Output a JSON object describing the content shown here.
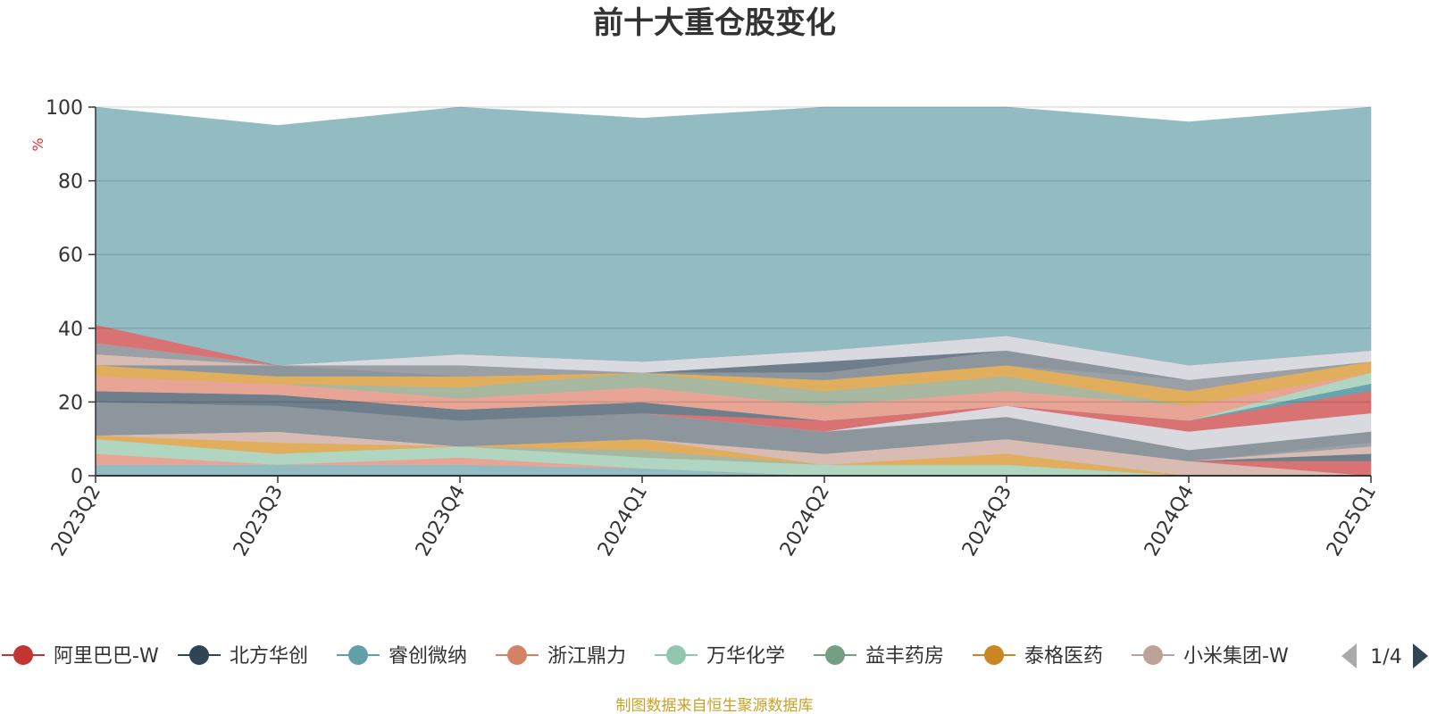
{
  "chart_data": {
    "type": "area",
    "stacked": true,
    "title": "前十大重仓股变化",
    "ylabel": "%",
    "ylim": [
      0,
      100
    ],
    "yticks": [
      0,
      20,
      40,
      60,
      80,
      100
    ],
    "grid": true,
    "legend_position": "bottom",
    "categories": [
      "2023Q2",
      "2023Q3",
      "2023Q4",
      "2024Q1",
      "2024Q2",
      "2024Q3",
      "2024Q4",
      "2025Q1"
    ],
    "series": [
      {
        "name": "",
        "color": "#93bbc2",
        "values": [
          3,
          3,
          3,
          2,
          0,
          0,
          0,
          0
        ]
      },
      {
        "name": "",
        "color": "#e8a596",
        "values": [
          3,
          0,
          2,
          0,
          0,
          0,
          0,
          0
        ]
      },
      {
        "name": "",
        "color": "#b0d6c2",
        "values": [
          4,
          3,
          3,
          3,
          3,
          3,
          0,
          0
        ]
      },
      {
        "name": "",
        "color": "#a8b8a0",
        "values": [
          0,
          0,
          0,
          2,
          0,
          0,
          0,
          0
        ]
      },
      {
        "name": "",
        "color": "#e0ae5c",
        "values": [
          1,
          3,
          0,
          3,
          0,
          3,
          0,
          0
        ]
      },
      {
        "name": "",
        "color": "#d8bcb4",
        "values": [
          0,
          3,
          0,
          0,
          3,
          4,
          4,
          0
        ]
      },
      {
        "name": "",
        "color": "#d97272",
        "values": [
          0,
          0,
          0,
          0,
          0,
          0,
          0,
          4
        ]
      },
      {
        "name": "",
        "color": "#6e7e8a",
        "values": [
          0,
          0,
          0,
          0,
          0,
          0,
          0,
          2
        ]
      },
      {
        "name": "",
        "color": "#d8bcb4",
        "values": [
          0,
          0,
          0,
          0,
          0,
          0,
          0,
          2
        ]
      },
      {
        "name": "",
        "color": "#9aa0a6",
        "values": [
          0,
          0,
          0,
          0,
          0,
          0,
          0,
          1
        ]
      },
      {
        "name": "",
        "color": "#8c969c",
        "values": [
          9,
          7,
          7,
          7,
          6,
          6,
          3,
          3
        ]
      },
      {
        "name": "",
        "color": "#d8dadf",
        "values": [
          0,
          0,
          0,
          0,
          0,
          3,
          5,
          5
        ]
      },
      {
        "name": "",
        "color": "#d97272",
        "values": [
          0,
          0,
          0,
          0,
          3,
          0,
          3,
          6
        ]
      },
      {
        "name": "",
        "color": "#6aa3b0",
        "values": [
          0,
          0,
          0,
          0,
          0,
          0,
          0,
          2
        ]
      },
      {
        "name": "",
        "color": "#6e7e8a",
        "values": [
          3,
          3,
          3,
          3,
          0,
          0,
          0,
          0
        ]
      },
      {
        "name": "",
        "color": "#b0d6c2",
        "values": [
          0,
          0,
          0,
          0,
          0,
          0,
          0,
          3
        ]
      },
      {
        "name": "",
        "color": "#e8a596",
        "values": [
          4,
          3,
          3,
          4,
          4,
          4,
          4,
          0
        ]
      },
      {
        "name": "",
        "color": "#a8b8a0",
        "values": [
          0,
          0,
          3,
          4,
          4,
          4,
          0,
          0
        ]
      },
      {
        "name": "",
        "color": "#e0ae5c",
        "values": [
          3,
          2,
          3,
          0,
          3,
          3,
          4,
          3
        ]
      },
      {
        "name": "",
        "color": "#9aa0a6",
        "values": [
          0,
          0,
          0,
          0,
          0,
          0,
          3,
          0
        ]
      },
      {
        "name": "",
        "color": "#8c969c",
        "values": [
          0,
          3,
          0,
          0,
          2,
          4,
          0,
          0
        ]
      },
      {
        "name": "",
        "color": "#d8bcb4",
        "values": [
          3,
          0,
          0,
          0,
          0,
          0,
          0,
          0
        ]
      },
      {
        "name": "",
        "color": "#6e7e8a",
        "values": [
          0,
          0,
          0,
          0,
          3,
          0,
          0,
          0
        ]
      },
      {
        "name": "",
        "color": "#9aa0a6",
        "values": [
          3,
          0,
          3,
          0,
          0,
          0,
          0,
          0
        ]
      },
      {
        "name": "",
        "color": "#d8dadf",
        "values": [
          0,
          0,
          3,
          3,
          3,
          4,
          4,
          3
        ]
      },
      {
        "name": "",
        "color": "#d97272",
        "values": [
          5,
          0,
          0,
          0,
          0,
          0,
          0,
          0
        ]
      },
      {
        "name": "",
        "color": "#93bbc2",
        "values": [
          59,
          65,
          67,
          66,
          66,
          62,
          66,
          66
        ]
      }
    ],
    "legend": [
      {
        "name": "阿里巴巴-W",
        "color": "#c23531"
      },
      {
        "name": "北方华创",
        "color": "#2f4554"
      },
      {
        "name": "睿创微纳",
        "color": "#61a0a8"
      },
      {
        "name": "浙江鼎力",
        "color": "#d48265"
      },
      {
        "name": "万华化学",
        "color": "#91c7ae"
      },
      {
        "name": "益丰药房",
        "color": "#749f83"
      },
      {
        "name": "泰格医药",
        "color": "#ca8622"
      },
      {
        "name": "小米集团-W",
        "color": "#bda29a"
      }
    ],
    "legend_page": "1/4",
    "source": "制图数据来自恒生聚源数据库"
  }
}
